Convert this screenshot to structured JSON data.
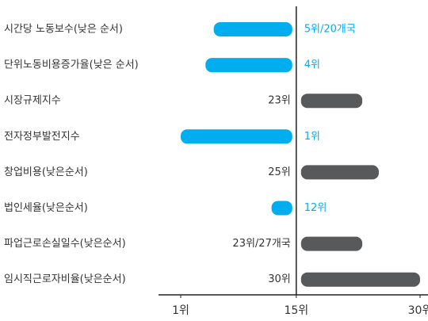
{
  "chart_data": {
    "type": "diverging-bar",
    "categories": [
      "시간당 노동보수(낮은 순서)",
      "단위노동비용증가율(낮은 순서)",
      "시장규제지수",
      "전자정부발전지수",
      "창업비용(낮은순서)",
      "법인세율(낮은순서)",
      "파업근로손실일수(낮은순서)",
      "임시직근로자비율(낮은순서)"
    ],
    "values": [
      5,
      4,
      23,
      1,
      25,
      12,
      23,
      30
    ],
    "value_labels": [
      "5위/20개국",
      "4위",
      "23위",
      "1위",
      "25위",
      "12위",
      "23위/27개국",
      "30위"
    ],
    "reference_line": 15,
    "colors": [
      "#00aeef",
      "#58595b"
    ],
    "xlim": [
      1,
      30
    ],
    "xticks": [
      {
        "value": 1,
        "label": "1위"
      },
      {
        "value": 15,
        "label": "15위"
      },
      {
        "value": 30,
        "label": "30위"
      }
    ]
  }
}
